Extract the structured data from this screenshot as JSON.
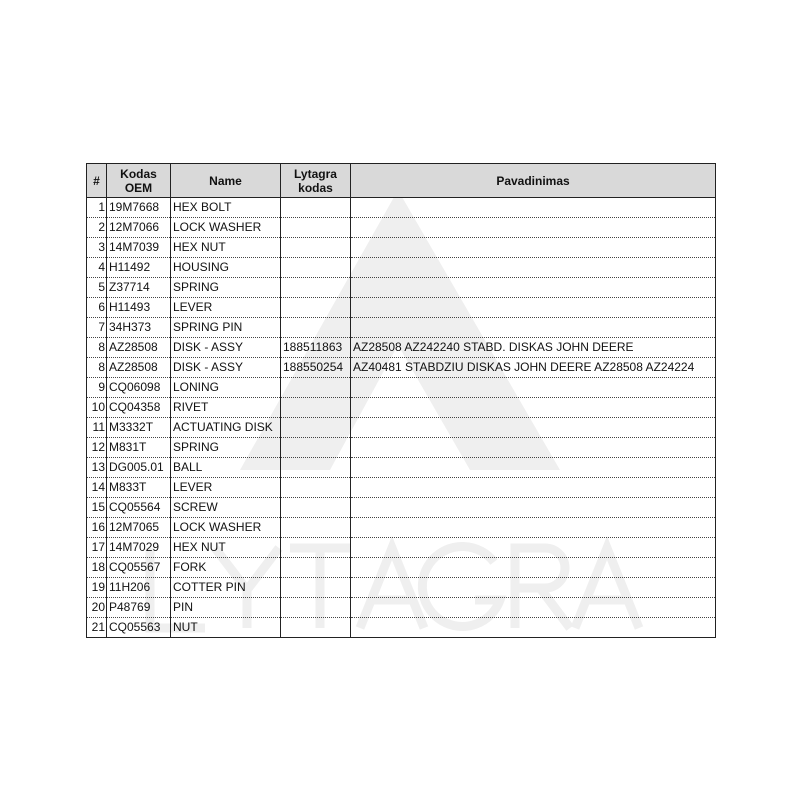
{
  "watermark": {
    "text": "LYTAGRA"
  },
  "table": {
    "headers": [
      "#",
      "Kodas OEM",
      "Name",
      "Lytagra kodas",
      "Pavadinimas"
    ],
    "rows": [
      [
        "1",
        "19M7668",
        "HEX BOLT",
        "",
        ""
      ],
      [
        "2",
        "12M7066",
        "LOCK WASHER",
        "",
        ""
      ],
      [
        "3",
        "14M7039",
        "HEX NUT",
        "",
        ""
      ],
      [
        "4",
        "H11492",
        "HOUSING",
        "",
        ""
      ],
      [
        "5",
        "Z37714",
        "SPRING",
        "",
        ""
      ],
      [
        "6",
        "H11493",
        "LEVER",
        "",
        ""
      ],
      [
        "7",
        "34H373",
        "SPRING PIN",
        "",
        ""
      ],
      [
        "8",
        "AZ28508",
        "DISK - ASSY",
        "188511863",
        "AZ28508 AZ242240 STABD. DISKAS JOHN DEERE"
      ],
      [
        "8",
        "AZ28508",
        "DISK - ASSY",
        "188550254",
        "AZ40481 STABDZIU DISKAS JOHN DEERE AZ28508 AZ24224"
      ],
      [
        "9",
        "CQ06098",
        "LONING",
        "",
        ""
      ],
      [
        "10",
        "CQ04358",
        "RIVET",
        "",
        ""
      ],
      [
        "11",
        "M3332T",
        "ACTUATING DISK",
        "",
        ""
      ],
      [
        "12",
        "M831T",
        "SPRING",
        "",
        ""
      ],
      [
        "13",
        "DG005.01",
        "BALL",
        "",
        ""
      ],
      [
        "14",
        "M833T",
        "LEVER",
        "",
        ""
      ],
      [
        "15",
        "CQ05564",
        "SCREW",
        "",
        ""
      ],
      [
        "16",
        "12M7065",
        "LOCK WASHER",
        "",
        ""
      ],
      [
        "17",
        "14M7029",
        "HEX NUT",
        "",
        ""
      ],
      [
        "18",
        "CQ05567",
        "FORK",
        "",
        ""
      ],
      [
        "19",
        "11H206",
        "COTTER PIN",
        "",
        ""
      ],
      [
        "20",
        "P48769",
        "PIN",
        "",
        ""
      ],
      [
        "21",
        "CQ05563",
        "NUT",
        "",
        ""
      ]
    ]
  }
}
